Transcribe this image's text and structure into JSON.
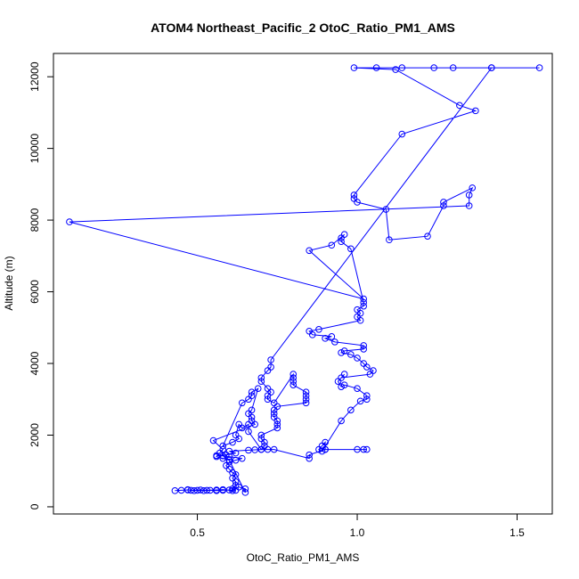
{
  "chart_data": {
    "type": "scatter",
    "title": "ATOM4 Northeast_Pacific_2 OtoC_Ratio_PM1_AMS",
    "xlabel": "OtoC_Ratio_PM1_AMS",
    "ylabel": "Altitude (m)",
    "xlim": [
      0.05,
      1.61
    ],
    "ylim": [
      -200,
      12650
    ],
    "x_ticks": [
      0.5,
      1.0,
      1.5
    ],
    "x_tick_labels": [
      "0.5",
      "1.0",
      "1.5"
    ],
    "y_ticks": [
      0,
      2000,
      4000,
      6000,
      8000,
      10000,
      12000
    ],
    "y_tick_labels": [
      "0",
      "2000",
      "4000",
      "6000",
      "8000",
      "10000",
      "12000"
    ],
    "grid": false,
    "legend": "none",
    "color": "#0000ff",
    "marker": "open-circle",
    "connected": true,
    "series": [
      {
        "points": [
          [
            0.43,
            450
          ],
          [
            0.45,
            460
          ],
          [
            0.47,
            470
          ],
          [
            0.49,
            450
          ],
          [
            0.5,
            460
          ],
          [
            0.52,
            450
          ],
          [
            0.54,
            460
          ],
          [
            0.56,
            450
          ],
          [
            0.58,
            460
          ],
          [
            0.6,
            470
          ],
          [
            0.62,
            460
          ],
          [
            0.61,
            500
          ],
          [
            0.62,
            600
          ],
          [
            0.62,
            700
          ],
          [
            0.61,
            800
          ],
          [
            0.62,
            900
          ],
          [
            0.61,
            950
          ],
          [
            0.6,
            1050
          ],
          [
            0.59,
            1150
          ],
          [
            0.6,
            1250
          ],
          [
            0.62,
            1300
          ],
          [
            0.64,
            1350
          ],
          [
            0.6,
            1400
          ],
          [
            0.58,
            1420
          ],
          [
            0.56,
            1430
          ],
          [
            0.59,
            1450
          ],
          [
            0.62,
            1500
          ],
          [
            0.6,
            1550
          ],
          [
            0.66,
            1580
          ],
          [
            0.68,
            1590
          ],
          [
            0.7,
            1600
          ],
          [
            0.72,
            1600
          ],
          [
            0.74,
            1600
          ],
          [
            0.85,
            1350
          ],
          [
            0.85,
            1450
          ],
          [
            0.9,
            1600
          ],
          [
            1.0,
            1600
          ],
          [
            1.02,
            1600
          ],
          [
            1.03,
            1600
          ],
          [
            0.9,
            1600
          ],
          [
            0.9,
            1800
          ],
          [
            0.89,
            1700
          ],
          [
            0.88,
            1600
          ],
          [
            0.89,
            1550
          ],
          [
            0.95,
            2400
          ],
          [
            0.98,
            2700
          ],
          [
            1.01,
            2950
          ],
          [
            1.03,
            3000
          ],
          [
            1.03,
            3100
          ],
          [
            1.0,
            3300
          ],
          [
            0.96,
            3400
          ],
          [
            0.95,
            3350
          ],
          [
            0.94,
            3500
          ],
          [
            0.96,
            3700
          ],
          [
            0.95,
            3600
          ],
          [
            1.04,
            3700
          ],
          [
            1.05,
            3800
          ],
          [
            1.03,
            3900
          ],
          [
            1.02,
            4000
          ],
          [
            1.0,
            4150
          ],
          [
            0.98,
            4250
          ],
          [
            0.95,
            4300
          ],
          [
            0.96,
            4350
          ],
          [
            1.02,
            4400
          ],
          [
            1.02,
            4500
          ],
          [
            0.93,
            4600
          ],
          [
            0.9,
            4700
          ],
          [
            0.92,
            4750
          ],
          [
            0.86,
            4800
          ],
          [
            0.85,
            4900
          ],
          [
            0.88,
            4950
          ],
          [
            1.01,
            5200
          ],
          [
            1.0,
            5300
          ],
          [
            1.01,
            5400
          ],
          [
            1.0,
            5500
          ],
          [
            1.02,
            5600
          ],
          [
            1.02,
            5700
          ],
          [
            0.98,
            7200
          ],
          [
            0.95,
            7400
          ],
          [
            0.95,
            7500
          ],
          [
            0.96,
            7600
          ],
          [
            0.92,
            7300
          ],
          [
            0.85,
            7150
          ],
          [
            1.02,
            5800
          ],
          [
            0.1,
            7950
          ],
          [
            1.35,
            8400
          ],
          [
            1.35,
            8700
          ],
          [
            1.36,
            8900
          ],
          [
            1.27,
            8500
          ],
          [
            1.27,
            8400
          ],
          [
            1.22,
            7550
          ],
          [
            1.1,
            7450
          ],
          [
            1.09,
            8300
          ],
          [
            1.0,
            8500
          ],
          [
            0.99,
            8600
          ],
          [
            0.99,
            8700
          ],
          [
            1.14,
            10400
          ],
          [
            1.37,
            11050
          ],
          [
            1.32,
            11200
          ],
          [
            1.12,
            12200
          ],
          [
            0.99,
            12250
          ],
          [
            1.06,
            12250
          ],
          [
            1.14,
            12250
          ],
          [
            1.24,
            12250
          ],
          [
            1.3,
            12250
          ],
          [
            1.42,
            12250
          ],
          [
            1.57,
            12250
          ],
          [
            1.42,
            12250
          ],
          [
            0.73,
            4100
          ],
          [
            0.73,
            3900
          ],
          [
            0.72,
            3800
          ],
          [
            0.7,
            3600
          ],
          [
            0.7,
            3500
          ],
          [
            0.72,
            3300
          ],
          [
            0.73,
            3200
          ],
          [
            0.72,
            3100
          ],
          [
            0.72,
            3000
          ],
          [
            0.74,
            2900
          ],
          [
            0.8,
            3700
          ],
          [
            0.8,
            3600
          ],
          [
            0.8,
            3500
          ],
          [
            0.8,
            3400
          ],
          [
            0.84,
            3200
          ],
          [
            0.84,
            3100
          ],
          [
            0.84,
            3000
          ],
          [
            0.84,
            2900
          ],
          [
            0.75,
            2800
          ],
          [
            0.74,
            2700
          ],
          [
            0.74,
            2600
          ],
          [
            0.74,
            2500
          ],
          [
            0.75,
            2400
          ],
          [
            0.75,
            2300
          ],
          [
            0.75,
            2200
          ],
          [
            0.7,
            2000
          ],
          [
            0.7,
            1900
          ],
          [
            0.71,
            1800
          ],
          [
            0.71,
            1700
          ],
          [
            0.7,
            1600
          ],
          [
            0.66,
            2100
          ],
          [
            0.66,
            2300
          ],
          [
            0.64,
            2200
          ],
          [
            0.63,
            2300
          ],
          [
            0.62,
            2000
          ],
          [
            0.63,
            1900
          ],
          [
            0.61,
            1800
          ],
          [
            0.58,
            1700
          ],
          [
            0.64,
            2900
          ],
          [
            0.66,
            3000
          ],
          [
            0.67,
            3100
          ],
          [
            0.67,
            3200
          ],
          [
            0.69,
            3300
          ],
          [
            0.67,
            2700
          ],
          [
            0.66,
            2600
          ],
          [
            0.67,
            2500
          ],
          [
            0.67,
            2400
          ],
          [
            0.68,
            2300
          ],
          [
            0.55,
            1850
          ],
          [
            0.58,
            1600
          ],
          [
            0.57,
            1500
          ],
          [
            0.56,
            1400
          ],
          [
            0.58,
            1350
          ],
          [
            0.6,
            1300
          ],
          [
            0.65,
            400
          ],
          [
            0.65,
            500
          ],
          [
            0.63,
            550
          ],
          [
            0.61,
            450
          ],
          [
            0.58,
            480
          ],
          [
            0.56,
            470
          ],
          [
            0.53,
            460
          ],
          [
            0.51,
            470
          ],
          [
            0.48,
            460
          ],
          [
            0.47,
            480
          ]
        ]
      }
    ]
  }
}
